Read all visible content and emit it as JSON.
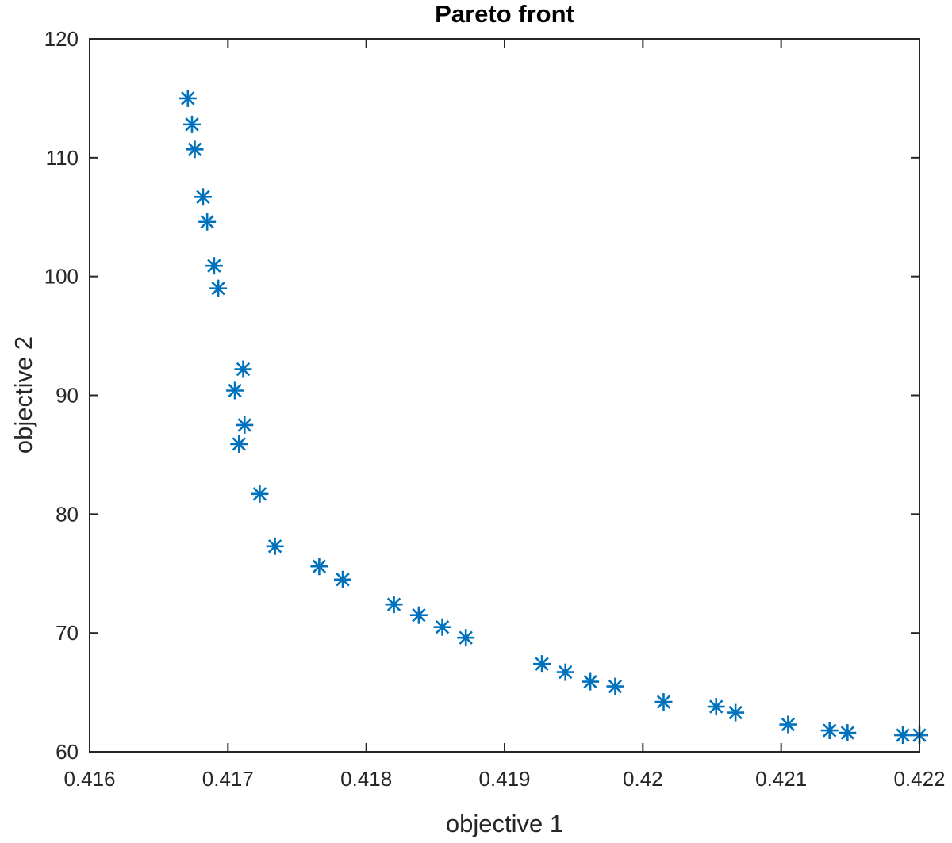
{
  "chart_data": {
    "type": "scatter",
    "title": "Pareto front",
    "xlabel": "objective 1",
    "ylabel": "objective 2",
    "xlim": [
      0.416,
      0.422
    ],
    "ylim": [
      60,
      120
    ],
    "xticks": [
      0.416,
      0.417,
      0.418,
      0.419,
      0.42,
      0.421,
      0.422
    ],
    "xtick_labels": [
      "0.416",
      "0.417",
      "0.418",
      "0.419",
      "0.42",
      "0.421",
      "0.422"
    ],
    "yticks": [
      60,
      70,
      80,
      90,
      100,
      110,
      120
    ],
    "ytick_labels": [
      "60",
      "70",
      "80",
      "90",
      "100",
      "110",
      "120"
    ],
    "grid": false,
    "marker": "asterisk",
    "marker_color": "#0072BD",
    "axis_color": "#262626",
    "series": [
      {
        "x": [
          0.41671,
          0.41674,
          0.41676,
          0.41682,
          0.41685,
          0.4169,
          0.41693,
          0.41705,
          0.41711,
          0.41712,
          0.41708,
          0.41723,
          0.41734,
          0.41766,
          0.41783,
          0.4182,
          0.41838,
          0.41855,
          0.41872,
          0.41927,
          0.41944,
          0.41962,
          0.4198,
          0.42015,
          0.42053,
          0.42067,
          0.42105,
          0.42135,
          0.42148,
          0.42188,
          0.422
        ],
        "y": [
          115.0,
          112.8,
          110.7,
          106.7,
          104.6,
          100.9,
          99.0,
          90.4,
          92.2,
          87.5,
          85.9,
          81.7,
          77.3,
          75.6,
          74.5,
          72.4,
          71.5,
          70.5,
          69.6,
          67.4,
          66.7,
          65.9,
          65.5,
          64.2,
          63.8,
          63.3,
          62.3,
          61.8,
          61.6,
          61.4,
          61.4
        ]
      }
    ]
  }
}
